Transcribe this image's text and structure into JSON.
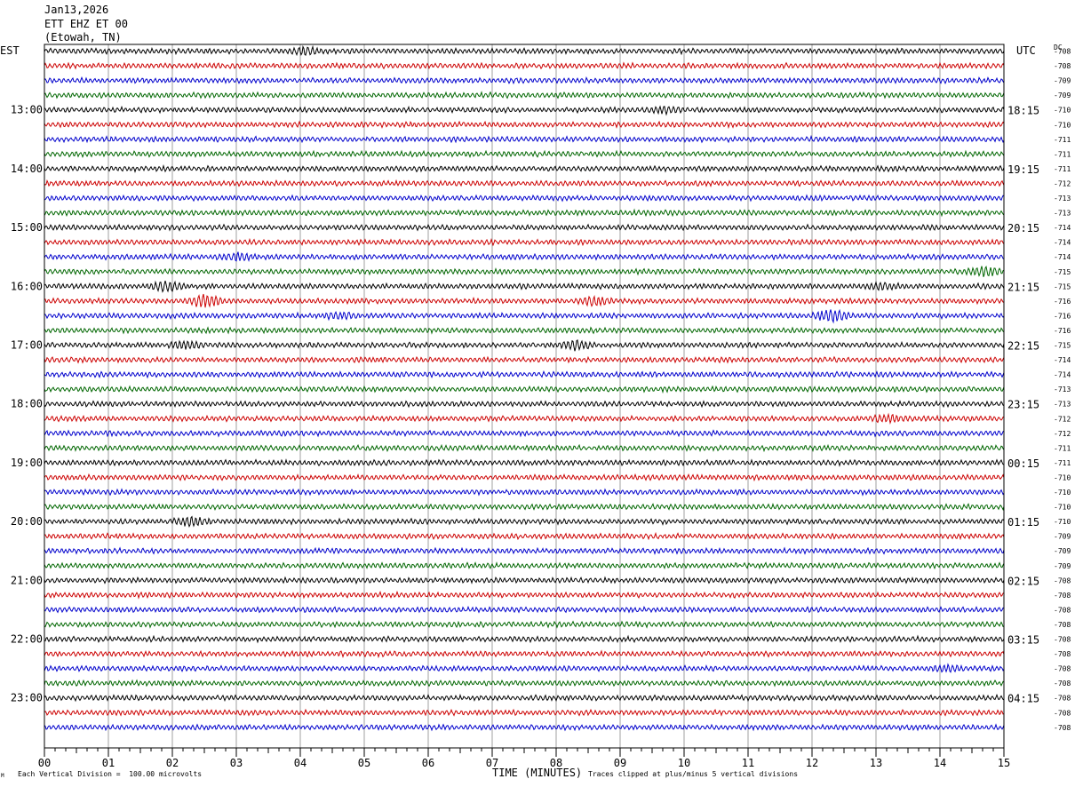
{
  "header": {
    "date": "Jan13,2026",
    "station": "ETT EHZ ET 00",
    "location": "(Etowah, TN)"
  },
  "labels": {
    "left_tz": "EST",
    "right_tz": "UTC",
    "dc": "DC"
  },
  "footer": {
    "scale_note": "Each Vertical Division =  100.00 microvolts",
    "xlabel": "TIME (MINUTES)",
    "clip_note": "Traces clipped at plus/minus 5 vertical divisions",
    "corner_mark": "M"
  },
  "colors": {
    "trace_cycle": [
      "#000000",
      "#cc0000",
      "#0000cc",
      "#006600"
    ],
    "grid": "#888888",
    "frame": "#000000"
  },
  "chart_data": {
    "type": "line",
    "title": "",
    "xlabel": "TIME (MINUTES)",
    "ylabel": "",
    "xlim": [
      0,
      15
    ],
    "x_ticks": [
      "00",
      "01",
      "02",
      "03",
      "04",
      "05",
      "06",
      "07",
      "08",
      "09",
      "10",
      "11",
      "12",
      "13",
      "14",
      "15"
    ],
    "left_time_labels": [
      "13:00",
      "14:00",
      "15:00",
      "16:00",
      "17:00",
      "18:00",
      "19:00",
      "20:00",
      "21:00",
      "22:00",
      "23:00"
    ],
    "right_time_labels": [
      "18:15",
      "19:15",
      "20:15",
      "21:15",
      "22:15",
      "23:15",
      "00:15",
      "01:15",
      "02:15",
      "03:15",
      "04:15"
    ],
    "rows_per_hour": 4,
    "rows_before_first_label": 4,
    "dc_offsets": [
      "-708",
      "-708",
      "-709",
      "-709",
      "-710",
      "-710",
      "-711",
      "-711",
      "-711",
      "-712",
      "-713",
      "-713",
      "-714",
      "-714",
      "-714",
      "-715",
      "-715",
      "-716",
      "-716",
      "-716",
      "-715",
      "-714",
      "-714",
      "-713",
      "-713",
      "-712",
      "-712",
      "-711",
      "-711",
      "-710",
      "-710",
      "-710",
      "-710",
      "-709",
      "-709",
      "-709",
      "-708",
      "-708",
      "-708",
      "-708",
      "-708",
      "-708",
      "-708",
      "-708",
      "-708",
      "-708",
      "-708"
    ],
    "events": [
      {
        "row": 0,
        "minute": 4.05,
        "amp": 1.2
      },
      {
        "row": 4,
        "minute": 9.7,
        "amp": 1.0
      },
      {
        "row": 16,
        "minute": 1.9,
        "amp": 1.8
      },
      {
        "row": 17,
        "minute": 2.5,
        "amp": 2.6
      },
      {
        "row": 17,
        "minute": 8.6,
        "amp": 1.6
      },
      {
        "row": 18,
        "minute": 12.3,
        "amp": 2.4
      },
      {
        "row": 18,
        "minute": 4.6,
        "amp": 1.1
      },
      {
        "row": 16,
        "minute": 13.1,
        "amp": 1.2
      },
      {
        "row": 14,
        "minute": 3.0,
        "amp": 1.3
      },
      {
        "row": 15,
        "minute": 14.7,
        "amp": 1.8
      },
      {
        "row": 20,
        "minute": 2.2,
        "amp": 1.5
      },
      {
        "row": 20,
        "minute": 8.3,
        "amp": 1.6
      },
      {
        "row": 25,
        "minute": 13.2,
        "amp": 1.2
      },
      {
        "row": 32,
        "minute": 2.3,
        "amp": 1.6
      },
      {
        "row": 42,
        "minute": 14.1,
        "amp": 1.0
      }
    ]
  }
}
